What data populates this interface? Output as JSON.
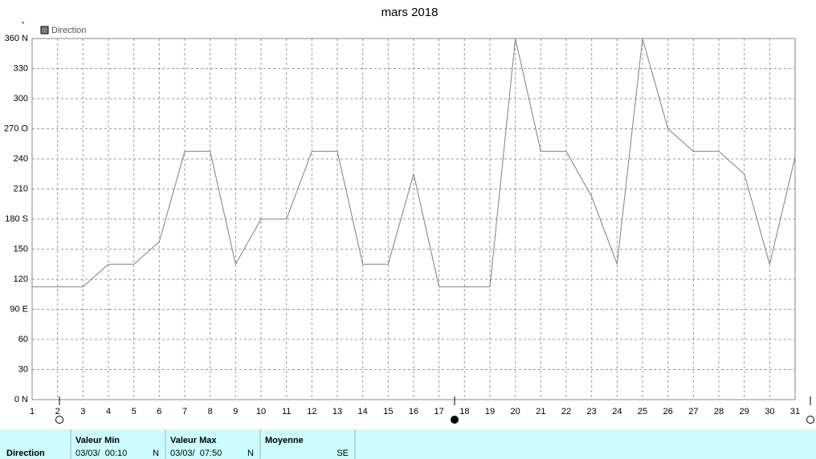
{
  "chart_data": {
    "type": "line",
    "title": "mars 2018",
    "y_unit": "°",
    "x": [
      1,
      2,
      3,
      4,
      5,
      6,
      7,
      8,
      9,
      10,
      11,
      12,
      13,
      14,
      15,
      16,
      17,
      18,
      19,
      20,
      21,
      22,
      23,
      24,
      25,
      26,
      27,
      28,
      29,
      30,
      31
    ],
    "series": [
      {
        "name": "Direction",
        "color": "#808080",
        "values": [
          112.5,
          112.5,
          112.5,
          135,
          135,
          157.5,
          247.5,
          247.5,
          135,
          180,
          180,
          247.5,
          247.5,
          135,
          135,
          225,
          112.5,
          112.5,
          112.5,
          360,
          247.5,
          247.5,
          202.5,
          135,
          360,
          270,
          247.5,
          247.5,
          225,
          135,
          242
        ]
      }
    ],
    "xlim": [
      1,
      31
    ],
    "xticks": [
      1,
      2,
      3,
      4,
      5,
      6,
      7,
      8,
      9,
      10,
      11,
      12,
      13,
      14,
      15,
      16,
      17,
      18,
      19,
      20,
      21,
      22,
      23,
      24,
      25,
      26,
      27,
      28,
      29,
      30,
      31
    ],
    "ylim": [
      0,
      360
    ],
    "yticks": [
      {
        "value": 0,
        "label": "0 N"
      },
      30,
      60,
      {
        "value": 90,
        "label": "90 E"
      },
      120,
      150,
      {
        "value": 180,
        "label": "180 S"
      },
      210,
      240,
      {
        "value": 270,
        "label": "270 O"
      },
      300,
      330,
      {
        "value": 360,
        "label": "360 N"
      }
    ],
    "grid": true
  },
  "summary": {
    "row_label": "Direction",
    "columns": [
      {
        "header": "Valeur Min",
        "date": "03/03/  00:10",
        "dir": "N"
      },
      {
        "header": "Valeur Max",
        "date": "03/03/  07:50",
        "dir": "N"
      },
      {
        "header": "Moyenne",
        "dir": "SE"
      }
    ]
  }
}
